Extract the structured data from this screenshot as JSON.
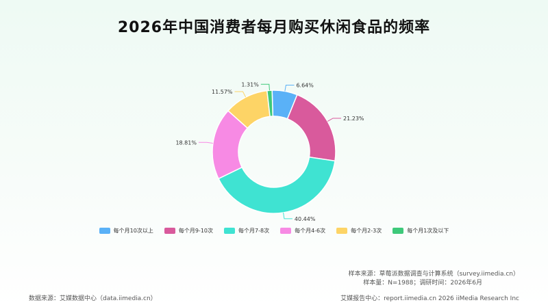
{
  "chart_data": {
    "type": "pie",
    "title": "2026年中国消费者每月购买休闲食品的频率",
    "donut": true,
    "categories": [
      "每个月10次以上",
      "每个月9-10次",
      "每个月7-8次",
      "每个月4-6次",
      "每个月2-3次",
      "每个月1次及以下"
    ],
    "values": [
      6.64,
      21.23,
      40.44,
      18.81,
      11.57,
      1.31
    ],
    "labels": [
      "6.64%",
      "21.23%",
      "40.44%",
      "18.81%",
      "11.57%",
      "1.31%"
    ],
    "colors": [
      "#5ab1f7",
      "#d95a9c",
      "#3fe3d2",
      "#f78ae4",
      "#fdd466",
      "#3ec97a"
    ],
    "legend_position": "bottom"
  },
  "footer": {
    "sample_source": "样本来源：草莓派数据调查与计算系统（survey.iimedia.cn）",
    "sample_size": "样本量：N=1988；调研时间：2026年6月",
    "data_source": "数据来源：艾媒数据中心（data.iimedia.cn）",
    "report_center": "艾媒报告中心：report.iimedia.cn   2026 iiMedia Research Inc"
  }
}
